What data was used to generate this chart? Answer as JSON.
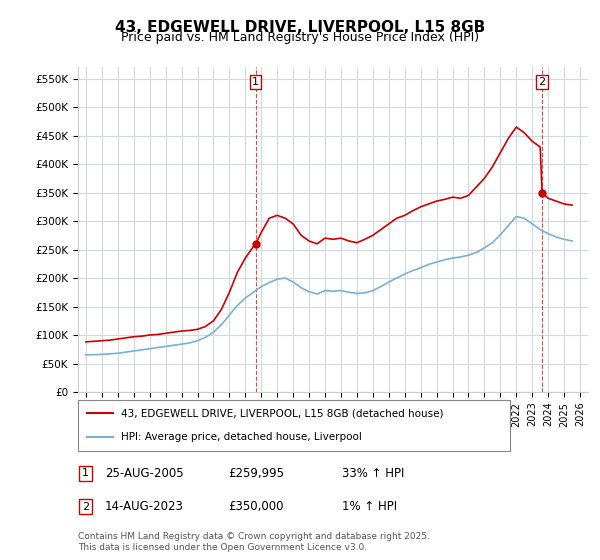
{
  "title": "43, EDGEWELL DRIVE, LIVERPOOL, L15 8GB",
  "subtitle": "Price paid vs. HM Land Registry's House Price Index (HPI)",
  "ylabel_ticks": [
    "£0",
    "£50K",
    "£100K",
    "£150K",
    "£200K",
    "£250K",
    "£300K",
    "£350K",
    "£400K",
    "£450K",
    "£500K",
    "£550K"
  ],
  "ytick_vals": [
    0,
    50000,
    100000,
    150000,
    200000,
    250000,
    300000,
    350000,
    400000,
    450000,
    500000,
    550000
  ],
  "ylim": [
    0,
    570000
  ],
  "xlim_start": 1994.5,
  "xlim_end": 2026.5,
  "background_color": "#ffffff",
  "grid_color": "#d0d8e8",
  "red_line_color": "#cc0000",
  "blue_line_color": "#7ab0d4",
  "marker1_year": 2005.65,
  "marker2_year": 2023.62,
  "marker1_label": "1",
  "marker2_label": "2",
  "transaction1": [
    "1",
    "25-AUG-2005",
    "£259,995",
    "33% ↑ HPI"
  ],
  "transaction2": [
    "2",
    "14-AUG-2023",
    "£350,000",
    "1% ↑ HPI"
  ],
  "legend_line1": "43, EDGEWELL DRIVE, LIVERPOOL, L15 8GB (detached house)",
  "legend_line2": "HPI: Average price, detached house, Liverpool",
  "copyright_text": "Contains HM Land Registry data © Crown copyright and database right 2025.\nThis data is licensed under the Open Government Licence v3.0.",
  "xtick_years": [
    1995,
    1996,
    1997,
    1998,
    1999,
    2000,
    2001,
    2002,
    2003,
    2004,
    2005,
    2006,
    2007,
    2008,
    2009,
    2010,
    2011,
    2012,
    2013,
    2014,
    2015,
    2016,
    2017,
    2018,
    2019,
    2020,
    2021,
    2022,
    2023,
    2024,
    2025,
    2026
  ],
  "red_x": [
    1995.0,
    1995.5,
    1996.0,
    1996.5,
    1997.0,
    1997.5,
    1998.0,
    1998.5,
    1999.0,
    1999.5,
    2000.0,
    2000.5,
    2001.0,
    2001.5,
    2002.0,
    2002.5,
    2003.0,
    2003.5,
    2004.0,
    2004.5,
    2005.0,
    2005.5,
    2005.65,
    2006.0,
    2006.5,
    2007.0,
    2007.5,
    2008.0,
    2008.5,
    2009.0,
    2009.5,
    2010.0,
    2010.5,
    2011.0,
    2011.5,
    2012.0,
    2012.5,
    2013.0,
    2013.5,
    2014.0,
    2014.5,
    2015.0,
    2015.5,
    2016.0,
    2016.5,
    2017.0,
    2017.5,
    2018.0,
    2018.5,
    2019.0,
    2019.5,
    2020.0,
    2020.5,
    2021.0,
    2021.5,
    2022.0,
    2022.5,
    2023.0,
    2023.5,
    2023.62,
    2024.0,
    2024.5,
    2025.0,
    2025.5
  ],
  "red_y": [
    88000,
    89000,
    90000,
    91000,
    93000,
    95000,
    97000,
    98000,
    100000,
    101000,
    103000,
    105000,
    107000,
    108000,
    110000,
    115000,
    125000,
    145000,
    175000,
    210000,
    235000,
    255000,
    259995,
    280000,
    305000,
    310000,
    305000,
    295000,
    275000,
    265000,
    260000,
    270000,
    268000,
    270000,
    265000,
    262000,
    268000,
    275000,
    285000,
    295000,
    305000,
    310000,
    318000,
    325000,
    330000,
    335000,
    338000,
    342000,
    340000,
    345000,
    360000,
    375000,
    395000,
    420000,
    445000,
    465000,
    455000,
    440000,
    430000,
    350000,
    340000,
    335000,
    330000,
    328000
  ],
  "blue_x": [
    1995.0,
    1995.5,
    1996.0,
    1996.5,
    1997.0,
    1997.5,
    1998.0,
    1998.5,
    1999.0,
    1999.5,
    2000.0,
    2000.5,
    2001.0,
    2001.5,
    2002.0,
    2002.5,
    2003.0,
    2003.5,
    2004.0,
    2004.5,
    2005.0,
    2005.5,
    2006.0,
    2006.5,
    2007.0,
    2007.5,
    2008.0,
    2008.5,
    2009.0,
    2009.5,
    2010.0,
    2010.5,
    2011.0,
    2011.5,
    2012.0,
    2012.5,
    2013.0,
    2013.5,
    2014.0,
    2014.5,
    2015.0,
    2015.5,
    2016.0,
    2016.5,
    2017.0,
    2017.5,
    2018.0,
    2018.5,
    2019.0,
    2019.5,
    2020.0,
    2020.5,
    2021.0,
    2021.5,
    2022.0,
    2022.5,
    2023.0,
    2023.5,
    2024.0,
    2024.5,
    2025.0,
    2025.5
  ],
  "blue_y": [
    65000,
    65500,
    66000,
    67000,
    68000,
    70000,
    72000,
    74000,
    76000,
    78000,
    80000,
    82000,
    84000,
    86000,
    90000,
    96000,
    105000,
    118000,
    135000,
    152000,
    165000,
    175000,
    185000,
    192000,
    198000,
    200000,
    193000,
    183000,
    176000,
    172000,
    178000,
    177000,
    178000,
    175000,
    173000,
    174000,
    178000,
    185000,
    193000,
    200000,
    207000,
    213000,
    218000,
    224000,
    228000,
    232000,
    235000,
    237000,
    240000,
    245000,
    253000,
    262000,
    276000,
    292000,
    308000,
    305000,
    295000,
    285000,
    278000,
    272000,
    268000,
    265000
  ]
}
